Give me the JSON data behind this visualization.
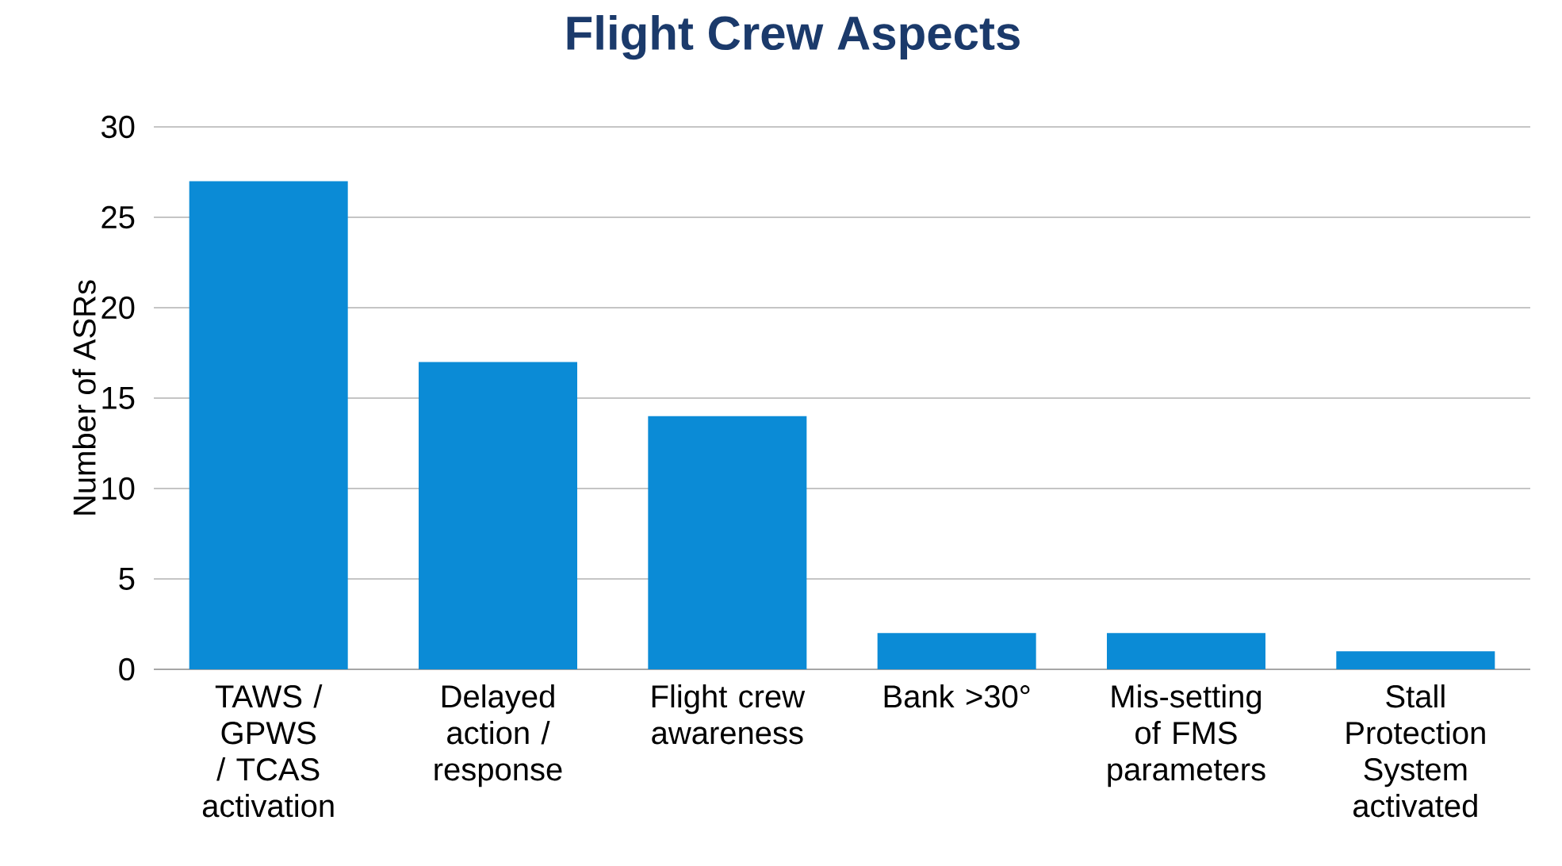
{
  "chart_data": {
    "type": "bar",
    "title": "Flight Crew Aspects",
    "ylabel": "Number of ASRs",
    "categories": [
      "TAWS / GPWS / TCAS activation",
      "Delayed action / response",
      "Flight crew awareness",
      "Bank >30°",
      "Mis-setting of FMS parameters",
      "Stall Protection System activated"
    ],
    "values": [
      27,
      17,
      14,
      2,
      2,
      1
    ],
    "color": "#0b8bd6",
    "ylim": [
      0,
      30
    ],
    "yticks": [
      0,
      5,
      10,
      15,
      20,
      25,
      30
    ],
    "grid": "y"
  }
}
